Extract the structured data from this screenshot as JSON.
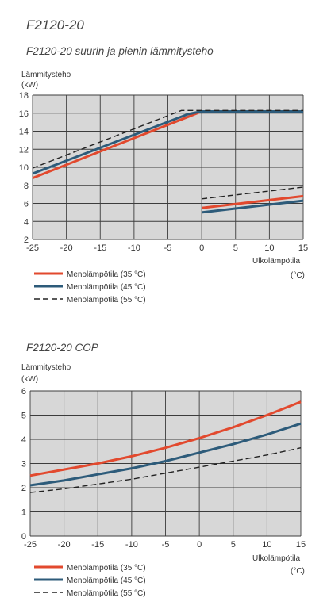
{
  "page_title": "F2120-20",
  "chart_data": [
    {
      "type": "line",
      "title": "F2120-20 suurin ja pienin lämmitysteho",
      "ylabel_line1": "Lämmitysteho",
      "ylabel_line2": "(kW)",
      "xlabel_line1": "Ulkolämpötila",
      "xlabel_line2": "(°C)",
      "xlim": [
        -25,
        15
      ],
      "ylim": [
        2,
        18
      ],
      "xticks": [
        -25,
        -20,
        -15,
        -10,
        -5,
        0,
        5,
        10,
        15
      ],
      "yticks": [
        2,
        4,
        6,
        8,
        10,
        12,
        14,
        16,
        18
      ],
      "grid": true,
      "legend_position": "below",
      "series": [
        {
          "name": "Menolämpötila (35 °C)",
          "color": "#e2492e",
          "style": "solid",
          "segments": [
            [
              [
                -25,
                8.8
              ],
              [
                -2,
                15.6
              ],
              [
                0,
                16.2
              ],
              [
                15,
                16.2
              ]
            ],
            [
              [
                0,
                5.5
              ],
              [
                15,
                6.8
              ]
            ]
          ]
        },
        {
          "name": "Menolämpötila (45 °C)",
          "color": "#2d5b7a",
          "style": "solid",
          "segments": [
            [
              [
                -25,
                9.3
              ],
              [
                -2,
                15.9
              ],
              [
                0,
                16.2
              ],
              [
                15,
                16.2
              ]
            ],
            [
              [
                0,
                5.0
              ],
              [
                15,
                6.3
              ]
            ]
          ]
        },
        {
          "name": "Menolämpötila (55 °C)",
          "color": "#222222",
          "style": "dashed",
          "segments": [
            [
              [
                -25,
                9.9
              ],
              [
                -3,
                16.3
              ],
              [
                15,
                16.3
              ]
            ],
            [
              [
                0,
                6.5
              ],
              [
                15,
                7.8
              ]
            ]
          ]
        }
      ]
    },
    {
      "type": "line",
      "title": "F2120-20 COP",
      "ylabel_line1": "Lämmitysteho",
      "ylabel_line2": "(kW)",
      "xlabel_line1": "Ulkolämpötila",
      "xlabel_line2": "(°C)",
      "xlim": [
        -25,
        15
      ],
      "ylim": [
        0,
        6
      ],
      "xticks": [
        -25,
        -20,
        -15,
        -10,
        -5,
        0,
        5,
        10,
        15
      ],
      "yticks": [
        0,
        1,
        2,
        3,
        4,
        5,
        6
      ],
      "grid": true,
      "legend_position": "below",
      "series": [
        {
          "name": "Menolämpötila (35 °C)",
          "color": "#e2492e",
          "style": "solid",
          "segments": [
            [
              [
                -25,
                2.5
              ],
              [
                -20,
                2.75
              ],
              [
                -15,
                3.0
              ],
              [
                -10,
                3.3
              ],
              [
                -5,
                3.65
              ],
              [
                0,
                4.05
              ],
              [
                5,
                4.5
              ],
              [
                10,
                5.0
              ],
              [
                15,
                5.55
              ]
            ]
          ]
        },
        {
          "name": "Menolämpötila (45 °C)",
          "color": "#2d5b7a",
          "style": "solid",
          "segments": [
            [
              [
                -25,
                2.1
              ],
              [
                -20,
                2.3
              ],
              [
                -15,
                2.55
              ],
              [
                -10,
                2.8
              ],
              [
                -5,
                3.1
              ],
              [
                0,
                3.45
              ],
              [
                5,
                3.8
              ],
              [
                10,
                4.2
              ],
              [
                15,
                4.65
              ]
            ]
          ]
        },
        {
          "name": "Menolämpötila (55 °C)",
          "color": "#222222",
          "style": "dashed",
          "segments": [
            [
              [
                -25,
                1.8
              ],
              [
                -20,
                1.95
              ],
              [
                -15,
                2.15
              ],
              [
                -10,
                2.35
              ],
              [
                -5,
                2.6
              ],
              [
                0,
                2.85
              ],
              [
                5,
                3.1
              ],
              [
                10,
                3.35
              ],
              [
                15,
                3.65
              ]
            ]
          ]
        }
      ]
    }
  ]
}
